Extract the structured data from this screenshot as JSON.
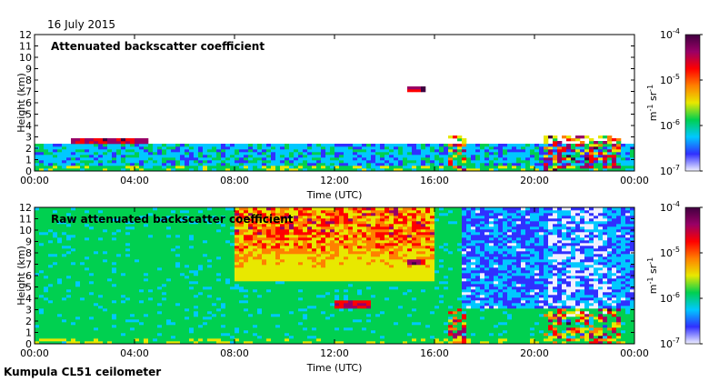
{
  "date_label": "16 July 2015",
  "footer_label": "Kumpula CL51 ceilometer",
  "colorbar": {
    "ticks": [
      {
        "mant": "10",
        "exp": "-4",
        "value": 0.0001
      },
      {
        "mant": "10",
        "exp": "-5",
        "value": 1e-05
      },
      {
        "mant": "10",
        "exp": "-6",
        "value": 1e-06
      },
      {
        "mant": "10",
        "exp": "-7",
        "value": 1e-07
      }
    ],
    "label_parts": [
      "m",
      "-1",
      " sr",
      "-1"
    ],
    "colors": [
      "#f0f0ff",
      "#3030ff",
      "#00c8ff",
      "#00d050",
      "#e8e800",
      "#ff8000",
      "#ff0000",
      "#990066",
      "#400040"
    ]
  },
  "chart_data": [
    {
      "type": "heatmap",
      "title": "Attenuated backscatter coefficient",
      "xlabel": "Time (UTC)",
      "ylabel": "Height (km)",
      "x_ticks": [
        "00:00",
        "04:00",
        "08:00",
        "12:00",
        "16:00",
        "20:00",
        "00:00"
      ],
      "y_ticks": [
        "0",
        "1",
        "2",
        "3",
        "4",
        "5",
        "6",
        "7",
        "8",
        "9",
        "10",
        "11",
        "12"
      ],
      "xlim": [
        0,
        24
      ],
      "ylim": [
        0,
        12
      ],
      "color_scale": "log",
      "clim": [
        1e-07,
        0.0001
      ],
      "features": [
        {
          "kind": "boundary_layer",
          "time_range": [
            0,
            24
          ],
          "height_km": [
            0,
            2.5
          ]
        },
        {
          "kind": "cloud_layer",
          "time_range": [
            1.5,
            4.5
          ],
          "height_km": 2.6
        },
        {
          "kind": "cloud_layer",
          "time_range": [
            15.0,
            15.6
          ],
          "height_km": 7.2
        },
        {
          "kind": "precipitation",
          "time_range": [
            16.5,
            17.3
          ],
          "height_km": [
            0,
            3
          ]
        },
        {
          "kind": "precipitation",
          "time_range": [
            20.3,
            23.5
          ],
          "height_km": [
            0,
            3
          ]
        }
      ]
    },
    {
      "type": "heatmap",
      "title": "Raw attenuated backscatter coefficient",
      "xlabel": "Time (UTC)",
      "ylabel": "Height (km)",
      "x_ticks": [
        "00:00",
        "04:00",
        "08:00",
        "12:00",
        "16:00",
        "20:00",
        "00:00"
      ],
      "y_ticks": [
        "0",
        "1",
        "2",
        "3",
        "4",
        "5",
        "6",
        "7",
        "8",
        "9",
        "10",
        "11",
        "12"
      ],
      "xlim": [
        0,
        24
      ],
      "ylim": [
        0,
        12
      ],
      "color_scale": "log",
      "clim": [
        1e-07,
        0.0001
      ],
      "features": [
        {
          "kind": "noise_band",
          "time_range": [
            8,
            16
          ],
          "height_km": [
            6,
            12
          ]
        },
        {
          "kind": "cloud_layer",
          "time_range": [
            12.0,
            13.5
          ],
          "height_km": 3.5
        },
        {
          "kind": "cloud_layer",
          "time_range": [
            15.0,
            15.6
          ],
          "height_km": 7.2
        },
        {
          "kind": "precipitation",
          "time_range": [
            16.5,
            17.3
          ],
          "height_km": [
            0,
            3
          ]
        },
        {
          "kind": "precipitation",
          "time_range": [
            20.3,
            23.5
          ],
          "height_km": [
            0,
            3
          ]
        }
      ]
    }
  ]
}
